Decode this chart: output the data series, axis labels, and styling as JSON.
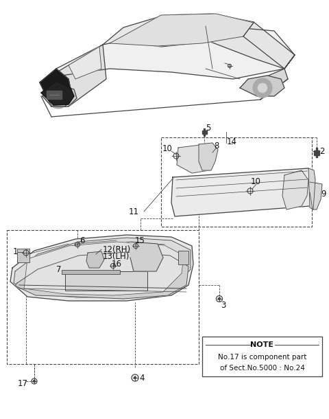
{
  "bg_color": "#ffffff",
  "line_color": "#444444",
  "text_color": "#111111",
  "note_text": [
    "NOTE",
    "No.17 is component part",
    "of Sect.No.5000 : No.24"
  ],
  "figsize": [
    4.8,
    6.1
  ],
  "dpi": 100
}
